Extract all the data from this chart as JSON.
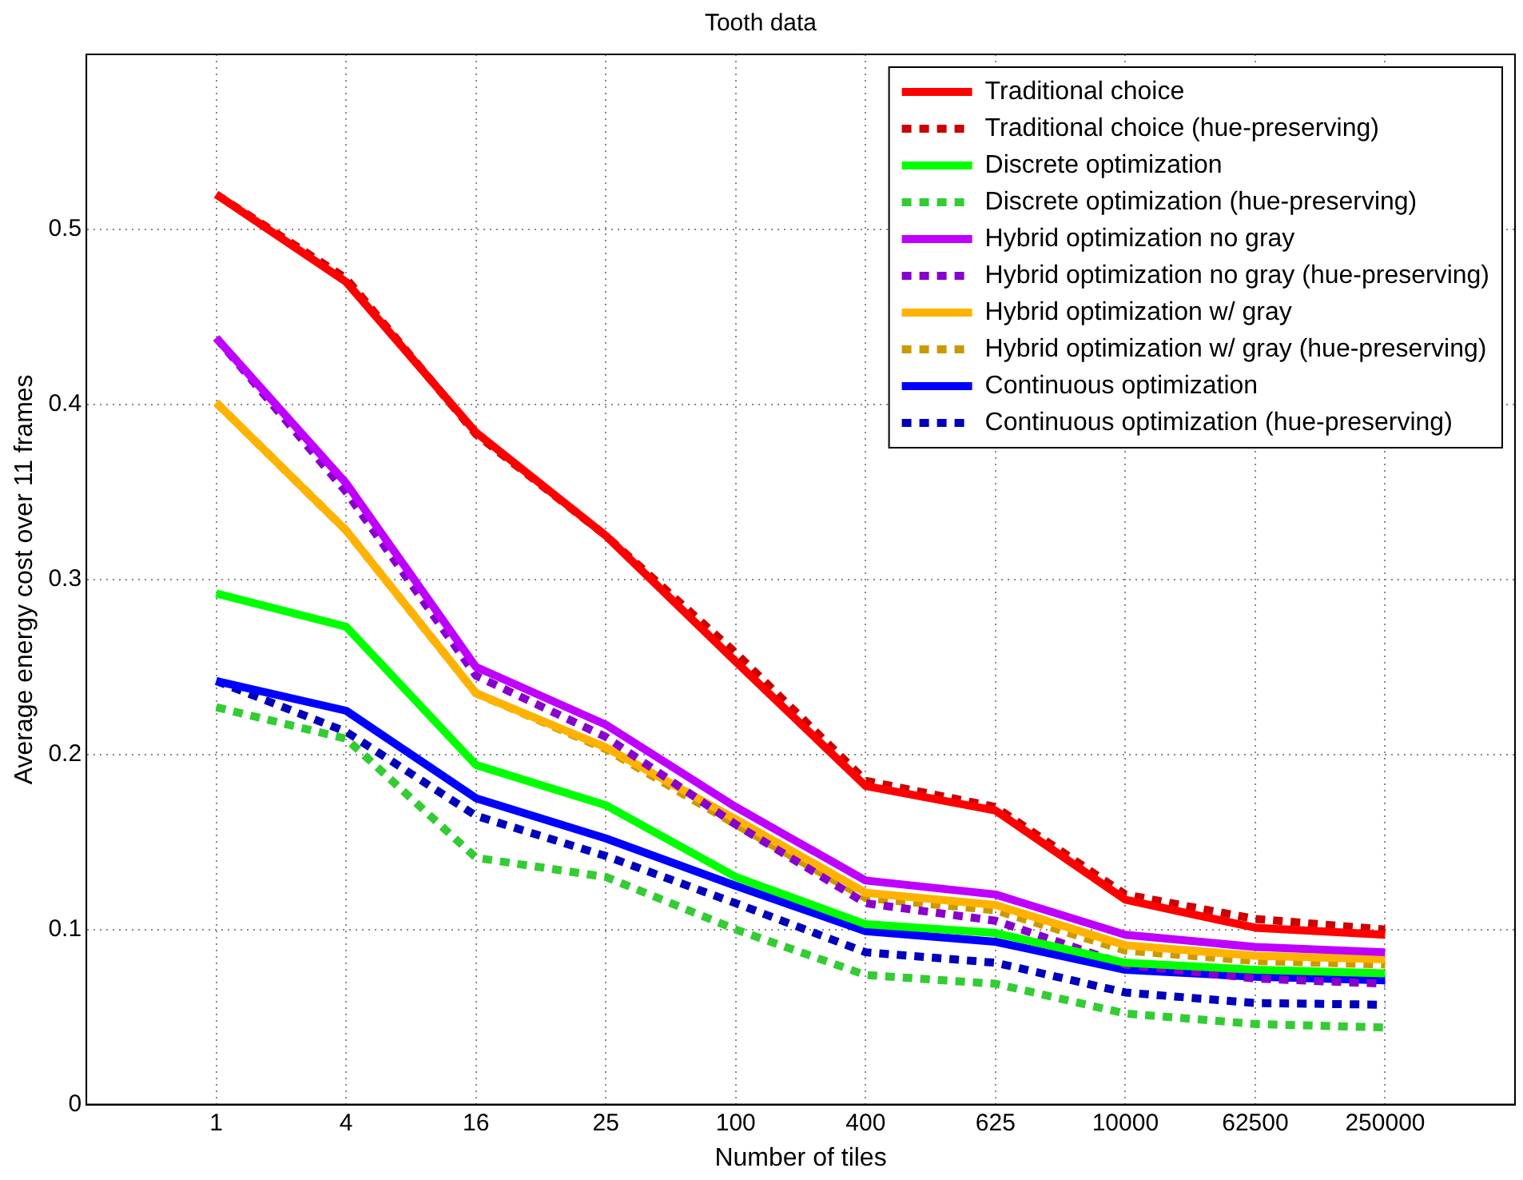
{
  "chart_data": {
    "type": "line",
    "title": "Tooth data",
    "xlabel": "Number of tiles",
    "ylabel": "Average energy cost over 11 frames",
    "categories": [
      "1",
      "4",
      "16",
      "25",
      "100",
      "400",
      "625",
      "10000",
      "62500",
      "250000"
    ],
    "ylim": [
      0,
      0.6
    ],
    "yticks": [
      0,
      0.1,
      0.2,
      0.3,
      0.4,
      0.5
    ],
    "grid": true,
    "legend": "top right",
    "marker": "none",
    "series": [
      {
        "name": "Traditional choice",
        "color": "#ff0000",
        "line_style": "solid",
        "values": [
          0.52,
          0.47,
          0.384,
          0.325,
          0.253,
          0.182,
          0.168,
          0.117,
          0.101,
          0.097
        ]
      },
      {
        "name": "Traditional choice (hue-preserving)",
        "color": "#cc0000",
        "line_style": "dotted",
        "values": [
          0.52,
          0.472,
          0.383,
          0.325,
          0.258,
          0.185,
          0.17,
          0.12,
          0.106,
          0.1
        ]
      },
      {
        "name": "Discrete optimization",
        "color": "#00ff00",
        "line_style": "solid",
        "values": [
          0.292,
          0.273,
          0.194,
          0.171,
          0.13,
          0.103,
          0.098,
          0.081,
          0.077,
          0.075
        ]
      },
      {
        "name": "Discrete optimization (hue-preserving)",
        "color": "#33cc33",
        "line_style": "dotted",
        "values": [
          0.227,
          0.209,
          0.141,
          0.13,
          0.1,
          0.074,
          0.069,
          0.052,
          0.046,
          0.044
        ]
      },
      {
        "name": "Hybrid optimization no gray",
        "color": "#bf00ff",
        "line_style": "solid",
        "values": [
          0.438,
          0.355,
          0.25,
          0.217,
          0.17,
          0.128,
          0.12,
          0.097,
          0.09,
          0.087
        ]
      },
      {
        "name": "Hybrid optimization no gray (hue-preserving)",
        "color": "#8800cc",
        "line_style": "dotted",
        "values": [
          0.438,
          0.35,
          0.245,
          0.21,
          0.16,
          0.115,
          0.105,
          0.08,
          0.072,
          0.069
        ]
      },
      {
        "name": "Hybrid optimization w/ gray",
        "color": "#ffb300",
        "line_style": "solid",
        "values": [
          0.401,
          0.328,
          0.235,
          0.204,
          0.163,
          0.121,
          0.114,
          0.091,
          0.085,
          0.083
        ]
      },
      {
        "name": "Hybrid optimization w/ gray (hue-preserving)",
        "color": "#cc9900",
        "line_style": "dotted",
        "values": [
          0.401,
          0.328,
          0.235,
          0.203,
          0.16,
          0.118,
          0.111,
          0.088,
          0.082,
          0.08
        ]
      },
      {
        "name": "Continuous optimization",
        "color": "#0000ff",
        "line_style": "solid",
        "values": [
          0.242,
          0.225,
          0.175,
          0.152,
          0.125,
          0.099,
          0.093,
          0.077,
          0.073,
          0.071
        ]
      },
      {
        "name": "Continuous optimization (hue-preserving)",
        "color": "#0000bb",
        "line_style": "dotted",
        "values": [
          0.242,
          0.213,
          0.165,
          0.142,
          0.115,
          0.087,
          0.081,
          0.064,
          0.058,
          0.057
        ]
      }
    ]
  }
}
